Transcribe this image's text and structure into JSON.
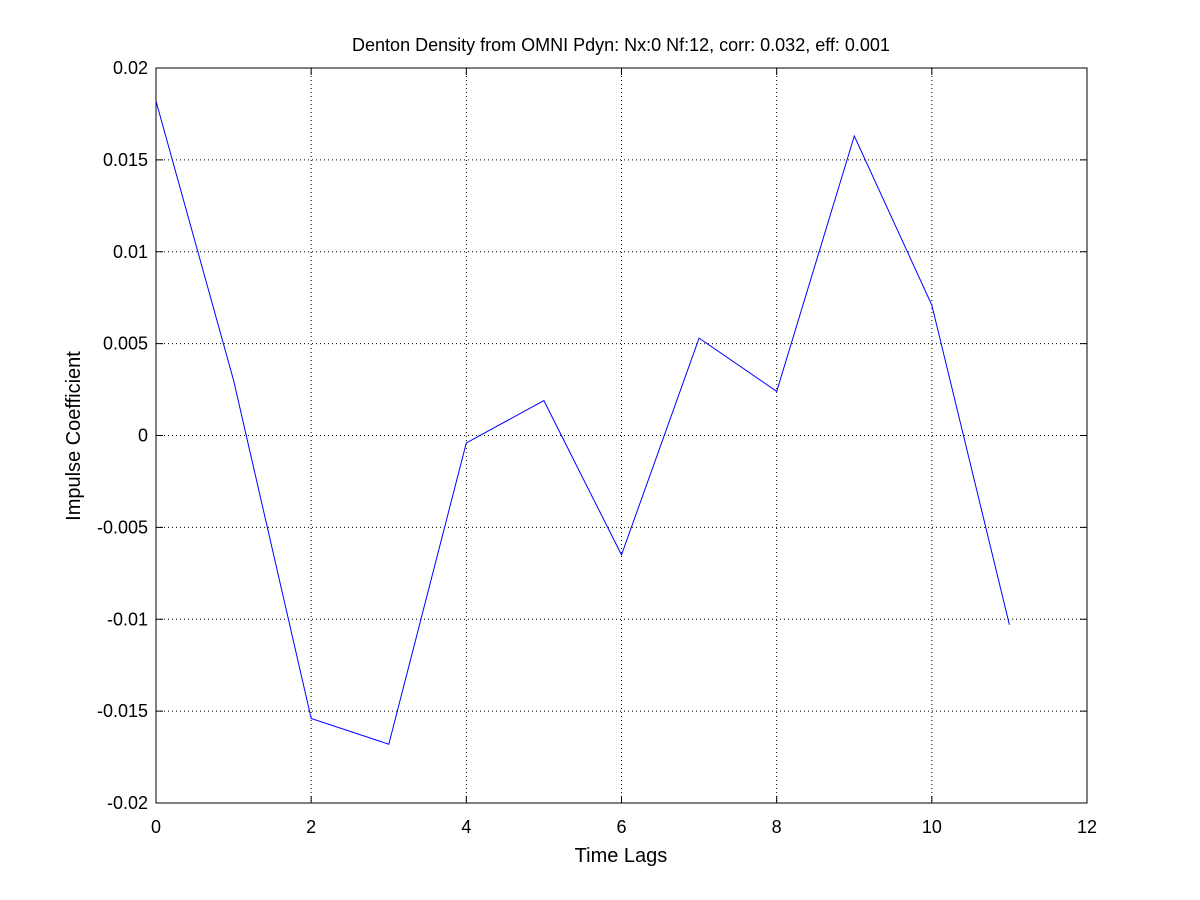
{
  "chart_data": {
    "type": "line",
    "title": "Denton Density from OMNI Pdyn: Nx:0 Nf:12, corr: 0.032, eff: 0.001",
    "xlabel": "Time Lags",
    "ylabel": "Impulse Coefficient",
    "xlim": [
      0,
      12
    ],
    "ylim": [
      -0.02,
      0.02
    ],
    "xticks": [
      0,
      2,
      4,
      6,
      8,
      10,
      12
    ],
    "xtick_labels": [
      "0",
      "2",
      "4",
      "6",
      "8",
      "10",
      "12"
    ],
    "yticks": [
      -0.02,
      -0.015,
      -0.01,
      -0.005,
      0,
      0.005,
      0.01,
      0.015,
      0.02
    ],
    "ytick_labels": [
      "-0.02",
      "-0.015",
      "-0.01",
      "-0.005",
      "0",
      "0.005",
      "0.01",
      "0.015",
      "0.02"
    ],
    "grid": true,
    "series": [
      {
        "x": [
          0,
          1,
          2,
          3,
          4,
          5,
          6,
          7,
          8,
          9,
          10,
          11
        ],
        "values": [
          0.0182,
          0.003,
          -0.0154,
          -0.0168,
          -0.0004,
          0.0019,
          -0.0065,
          0.0053,
          0.0024,
          0.0163,
          0.0071,
          -0.0103
        ],
        "color": "#0000ff"
      }
    ]
  }
}
